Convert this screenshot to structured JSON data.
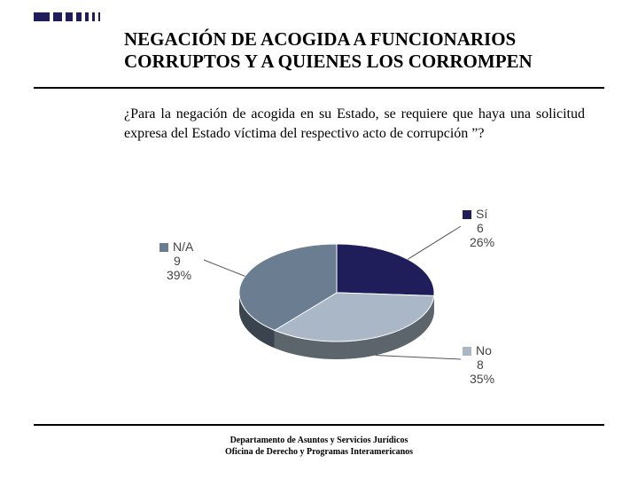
{
  "title": "NEGACIÓN DE ACOGIDA A FUNCIONARIOS CORRUPTOS Y A QUIENES LOS CORROMPEN",
  "question": "¿Para la negación de acogida en su Estado, se requiere que haya una solicitud expresa del Estado víctima del respectivo acto de corrupción ”?",
  "footer_line1": "Departamento de Asuntos y Servicios Jurídicos",
  "footer_line2": "Oficina de Derecho y Programas Interamericanos",
  "chart": {
    "type": "pie",
    "background_color": "#ffffff",
    "label_fontsize": 14,
    "label_color": "#444444",
    "slices": [
      {
        "key": "si",
        "label": "Sí",
        "count": 6,
        "percent": 26,
        "color": "#1f1e5a"
      },
      {
        "key": "no",
        "label": "No",
        "count": 8,
        "percent": 35,
        "color": "#a9b7c6"
      },
      {
        "key": "na",
        "label": "N/A",
        "count": 9,
        "percent": 39,
        "color": "#6b7d91"
      }
    ],
    "side_color": "#5a6a7a"
  },
  "legend": {
    "na": {
      "swatch": "#6b7d91",
      "label": "N/A",
      "count_text": "9",
      "percent_text": "39%"
    },
    "si": {
      "swatch": "#1f1e5a",
      "label": "Sí",
      "count_text": "6",
      "percent_text": "26%"
    },
    "no": {
      "swatch": "#a9b7c6",
      "label": "No",
      "count_text": "8",
      "percent_text": "35%"
    }
  }
}
